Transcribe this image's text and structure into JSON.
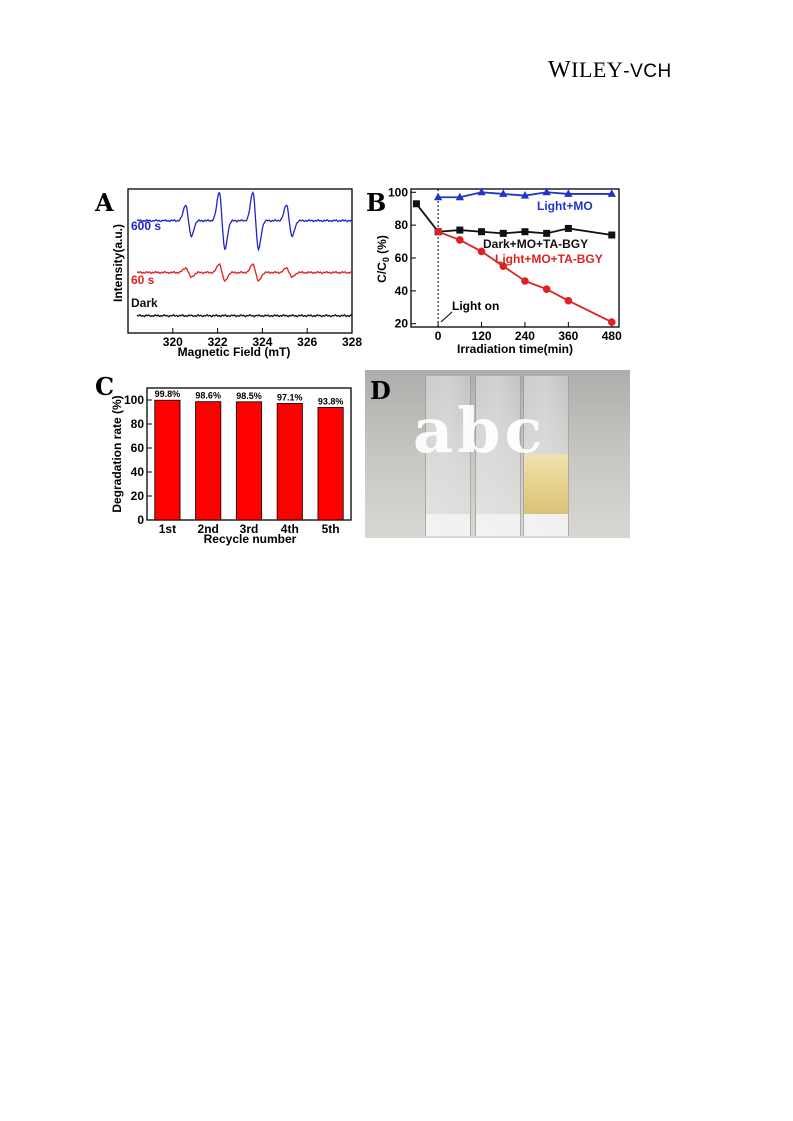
{
  "header": {
    "logo_w": "W",
    "logo_iley": "ILEY",
    "logo_vch": "-VCH"
  },
  "panels": {
    "A": {
      "label": "A",
      "ylabel": "Intensity(a.u.)",
      "xlabel": "Magnetic Field (mT)",
      "xticks": [
        "320",
        "322",
        "324",
        "326",
        "328"
      ],
      "traces": [
        {
          "name": "600 s",
          "color": "#2222cc",
          "baseline": 0.78,
          "amp": 1.0
        },
        {
          "name": "60 s",
          "color": "#dd2222",
          "baseline": 0.42,
          "amp": 0.3
        },
        {
          "name": "Dark",
          "color": "#111111",
          "baseline": 0.12,
          "amp": 0.0
        }
      ]
    },
    "B": {
      "label": "B",
      "ylabel_main": "C/C",
      "ylabel_sub": "0",
      "ylabel_unit": " (%)",
      "xlabel": "Irradiation time(min)",
      "annotation": "Light on"
    },
    "C": {
      "label": "C",
      "ylabel": "Degradation rate (%)",
      "xlabel": "Recycle number"
    },
    "D": {
      "label": "D",
      "letters": "abc"
    }
  },
  "chart_data": [
    {
      "type": "line",
      "x": [
        -60,
        0,
        60,
        120,
        180,
        240,
        300,
        360,
        480
      ],
      "xlim": [
        -75,
        500
      ],
      "ylim": [
        18,
        102
      ],
      "xticks": [
        "0",
        "120",
        "240",
        "360",
        "480"
      ],
      "yticks": [
        "20",
        "40",
        "60",
        "80",
        "100"
      ],
      "series": [
        {
          "name": "Light+MO",
          "color": "#2233cc",
          "marker": "triangle",
          "x": [
            0,
            60,
            120,
            180,
            240,
            300,
            360,
            480
          ],
          "values": [
            97,
            97,
            100,
            99,
            98,
            100,
            99,
            99
          ]
        },
        {
          "name": "Dark+MO+TA-BGY",
          "color": "#111111",
          "marker": "square",
          "x": [
            -60,
            0,
            60,
            120,
            180,
            240,
            300,
            360,
            480
          ],
          "values": [
            93,
            76,
            77,
            76,
            75,
            76,
            75,
            78,
            74
          ]
        },
        {
          "name": "Light+MO+TA-BGY",
          "color": "#dd2222",
          "marker": "circle",
          "x": [
            0,
            60,
            120,
            180,
            240,
            300,
            360,
            480
          ],
          "values": [
            76,
            71,
            64,
            55,
            46,
            41,
            34,
            21
          ]
        }
      ]
    },
    {
      "type": "bar",
      "categories": [
        "1st",
        "2nd",
        "3rd",
        "4th",
        "5th"
      ],
      "values": [
        99.8,
        98.6,
        98.5,
        97.1,
        93.8
      ],
      "labels": [
        "99.8%",
        "98.6%",
        "98.5%",
        "97.1%",
        "93.8%"
      ],
      "ylim": [
        0,
        110
      ],
      "yticks": [
        "0",
        "20",
        "40",
        "60",
        "80",
        "100"
      ],
      "color": "#ff0000"
    }
  ]
}
